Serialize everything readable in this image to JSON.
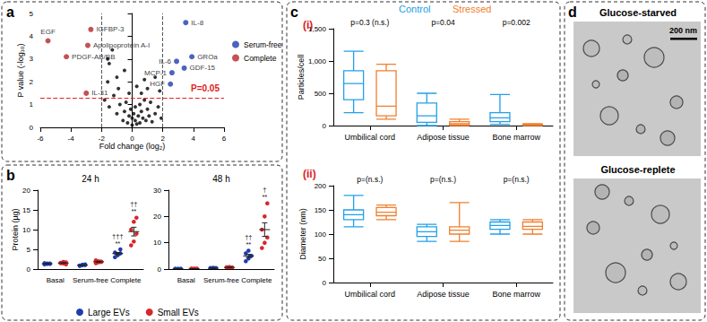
{
  "chart_data": [
    {
      "panel": "a",
      "type": "scatter",
      "xlabel": "Fold change (log₂)",
      "ylabel": "P value (-log₁₀)",
      "xlim": [
        -6,
        6
      ],
      "xticks": [
        -6,
        -4,
        -2,
        0,
        2,
        4,
        6
      ],
      "ylim": [
        0,
        5
      ],
      "yticks": [
        0,
        1,
        2,
        3,
        4,
        5
      ],
      "reference_lines": {
        "x": [
          -2,
          2
        ],
        "y": 1.3,
        "y_label": "P=0.05"
      },
      "legend": "right",
      "series": [
        {
          "color": "#000000",
          "x": [
            -1.8,
            -1.5,
            -1.2,
            -1.0,
            -0.8,
            -0.6,
            -0.5,
            -0.4,
            -0.3,
            -0.2,
            -0.1,
            0,
            0,
            0.1,
            0.2,
            0.2,
            0.3,
            0.4,
            0.5,
            0.5,
            0.6,
            0.7,
            0.8,
            0.9,
            1.0,
            1.1,
            1.2,
            1.3,
            1.5,
            1.7,
            1.9,
            -1.6,
            -1.0,
            -0.5,
            0.3,
            0.8,
            1.5,
            1.8,
            -1.6,
            -1.3,
            -1.5,
            0.6,
            -0.2,
            1.0,
            -0.9
          ],
          "values": [
            1.2,
            0.9,
            1.4,
            0.6,
            1.0,
            0.3,
            0.7,
            1.1,
            0.2,
            0.5,
            0.8,
            0.1,
            0.4,
            0.6,
            0.3,
            0.9,
            0.15,
            0.5,
            1.0,
            0.2,
            0.7,
            0.4,
            1.2,
            0.3,
            0.8,
            0.5,
            1.1,
            0.25,
            0.6,
            0.9,
            0.4,
            2.0,
            2.2,
            2.5,
            1.8,
            2.1,
            2.2,
            1.6,
            3.0,
            3.4,
            2.8,
            1.5,
            1.5,
            1.7,
            1.7
          ]
        },
        {
          "name": "Serum-free",
          "color": "#1f3cae",
          "x": [
            3.5,
            2.9,
            3.9,
            3.4,
            2.6,
            2.5
          ],
          "values": [
            4.6,
            2.9,
            3.1,
            2.6,
            2.4,
            1.9
          ],
          "point_labels": [
            "IL-8",
            "IL-6",
            "GROa",
            "GDF-15",
            "MCP-1",
            "HGF"
          ]
        },
        {
          "name": "Complete",
          "color": "#b5262a",
          "x": [
            -5.5,
            -2.7,
            -2.9,
            -4.3,
            -3.0
          ],
          "values": [
            3.8,
            4.3,
            3.6,
            3.1,
            1.5
          ],
          "point_labels": [
            "EGF",
            "IGFBP-3",
            "Apolipoprotein A-I",
            "PDGF-AB/BB",
            "IL-31"
          ]
        }
      ]
    },
    {
      "panel": "b",
      "type": "dot",
      "ylabel": "Protein (µg)",
      "categories": [
        "Basal",
        "Serum-free",
        "Complete"
      ],
      "legend": "bottom",
      "subplots": [
        {
          "title": "24 h",
          "ylim": [
            0,
            20
          ],
          "yticks": [
            0,
            5,
            10,
            15,
            20
          ],
          "series": [
            {
              "name": "Large EVs",
              "color": "#1f3cae",
              "points": [
                [
                  1.2,
                  1.4,
                  1.3,
                  1.5,
                  1.3,
                  1.4
                ],
                [
                  0.8,
                  1.0,
                  1.2,
                  0.9,
                  1.1,
                  1.0
                ],
                [
                  3.0,
                  3.5,
                  4.0,
                  4.2,
                  3.8,
                  5.0
                ]
              ],
              "means": [
                1.35,
                1.0,
                3.92
              ],
              "errors": [
                0.05,
                0.06,
                0.28
              ],
              "annotations": [
                null,
                null,
                [
                  "†††",
                  "**"
                ]
              ]
            },
            {
              "name": "Small EVs",
              "color": "#d7262b",
              "points": [
                [
                  1.5,
                  1.8,
                  1.2,
                  1.6,
                  1.4,
                  1.7
                ],
                [
                  1.5,
                  2.0,
                  1.8,
                  2.2,
                  1.7,
                  1.9
                ],
                [
                  6,
                  7,
                  9,
                  10,
                  12,
                  13
                ]
              ],
              "means": [
                1.53,
                1.85,
                9.5
              ],
              "errors": [
                0.09,
                0.1,
                1.1
              ],
              "annotations": [
                null,
                null,
                [
                  "††",
                  "**"
                ]
              ]
            }
          ]
        },
        {
          "title": "48 h",
          "ylim": [
            0,
            30
          ],
          "yticks": [
            0,
            10,
            20,
            30
          ],
          "series": [
            {
              "name": "Large EVs",
              "color": "#1f3cae",
              "points": [
                [
                  0.05,
                  0.1,
                  0.1,
                  0.05,
                  0.1,
                  0.1
                ],
                [
                  0.3,
                  0.5,
                  0.2,
                  0.4,
                  0.3,
                  0.4
                ],
                [
                  3,
                  4,
                  5,
                  6,
                  7,
                  5
                ]
              ],
              "means": [
                0.08,
                0.35,
                5
              ],
              "errors": [
                0.01,
                0.04,
                0.58
              ],
              "annotations": [
                null,
                null,
                [
                  "††",
                  "**"
                ]
              ]
            },
            {
              "name": "Small EVs",
              "color": "#d7262b",
              "points": [
                [
                  0.1,
                  0.15,
                  0.1,
                  0.2,
                  0.1,
                  0.15
                ],
                [
                  0.5,
                  0.8,
                  0.6,
                  0.7,
                  0.5,
                  0.6
                ],
                [
                  8,
                  10,
                  12,
                  15,
                  20,
                  25
                ]
              ],
              "means": [
                0.13,
                0.62,
                15
              ],
              "errors": [
                0.02,
                0.05,
                2.6
              ],
              "annotations": [
                null,
                null,
                [
                  "†",
                  "**"
                ]
              ]
            }
          ]
        }
      ]
    },
    {
      "panel": "c",
      "type": "boxplot",
      "categories": [
        "Umbilical cord",
        "Adipose tissue",
        "Bone marrow"
      ],
      "series": [
        {
          "name": "Control",
          "color": "#22a0e8"
        },
        {
          "name": "Stressed",
          "color": "#f07f2e"
        }
      ],
      "subplots": [
        {
          "title": "(i)",
          "ylabel": "Particles/cell",
          "ylim": [
            0,
            1500
          ],
          "yticks": [
            0,
            500,
            1000,
            1500
          ],
          "p_values": [
            "p=0.3 (n.s.)",
            "p=0.04",
            "p=0.002"
          ],
          "values": [
            [
              [
                200,
                400,
                650,
                850,
                1150
              ],
              [
                0,
                50,
                150,
                350,
                500
              ],
              [
                20,
                60,
                120,
                200,
                480
              ]
            ],
            [
              [
                100,
                150,
                300,
                850,
                950
              ],
              [
                0,
                10,
                30,
                60,
                100
              ],
              [
                0,
                5,
                10,
                20,
                30
              ]
            ]
          ]
        },
        {
          "title": "(ii)",
          "ylabel": "Diameter (nm)",
          "ylim": [
            0,
            200
          ],
          "yticks": [
            0,
            50,
            100,
            150,
            200
          ],
          "p_values": [
            "p=(n.s.)",
            "p=(n.s.)",
            "p=(n.s.)"
          ],
          "values": [
            [
              [
                115,
                130,
                140,
                150,
                180
              ],
              [
                85,
                95,
                105,
                115,
                120
              ],
              [
                100,
                110,
                118,
                125,
                130
              ]
            ],
            [
              [
                130,
                138,
                145,
                155,
                160
              ],
              [
                85,
                100,
                108,
                115,
                165
              ],
              [
                100,
                110,
                116,
                125,
                130
              ]
            ]
          ]
        }
      ]
    },
    {
      "panel": "d",
      "type": "image",
      "images": [
        {
          "title": "Glucose-starved",
          "scale_bar": "200 nm"
        },
        {
          "title": "Glucose-replete"
        }
      ]
    }
  ]
}
